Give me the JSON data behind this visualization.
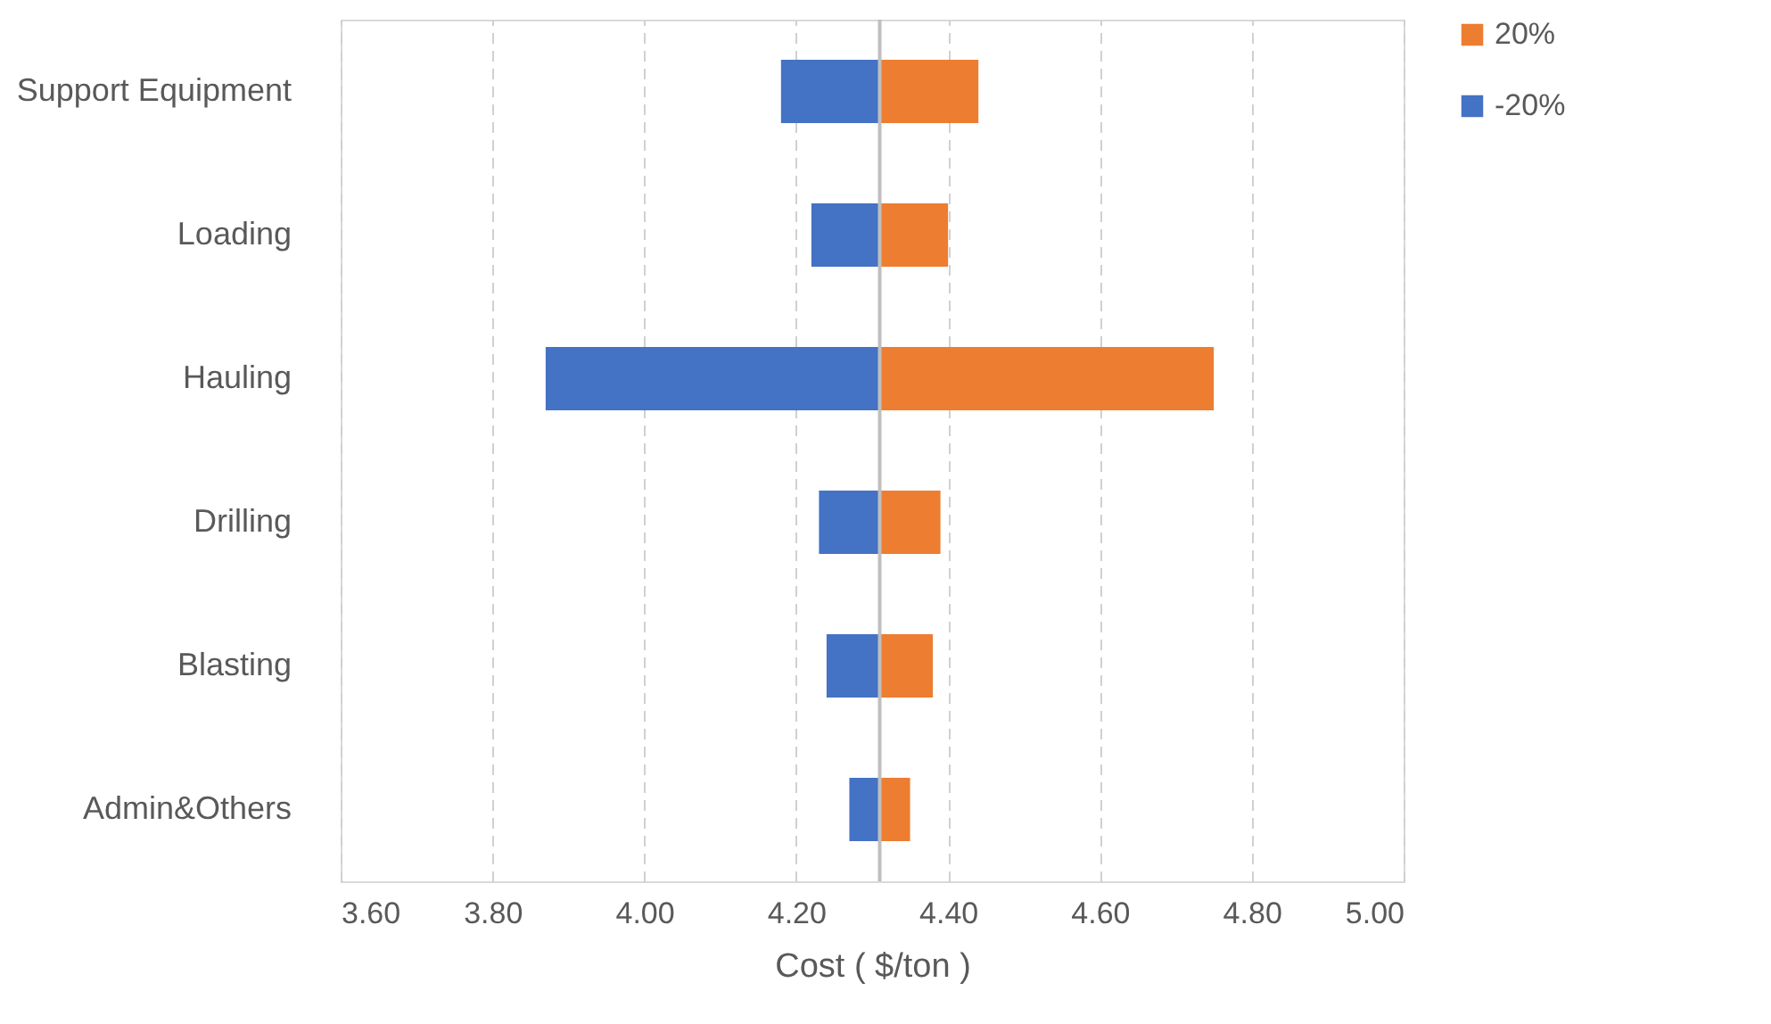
{
  "chart_data": {
    "type": "bar",
    "orientation": "horizontal",
    "xlabel": "Cost ( $/ton )",
    "categories": [
      "Support Equipment",
      "Loading",
      "Hauling",
      "Drilling",
      "Blasting",
      "Admin&Others"
    ],
    "series": [
      {
        "name": "20%",
        "color": "#ed7d31",
        "base": [
          4.31,
          4.31,
          4.31,
          4.31,
          4.31,
          4.31
        ],
        "values": [
          0.13,
          0.09,
          0.44,
          0.08,
          0.07,
          0.04
        ]
      },
      {
        "name": "-20%",
        "color": "#4472c4",
        "base": [
          4.31,
          4.31,
          4.31,
          4.31,
          4.31,
          4.31
        ],
        "values": [
          -0.13,
          -0.09,
          -0.44,
          -0.08,
          -0.07,
          -0.04
        ]
      }
    ],
    "xlim": [
      3.6,
      5.0
    ],
    "xticks": [
      {
        "value": 3.6,
        "label": "3.60"
      },
      {
        "value": 3.8,
        "label": "3.80"
      },
      {
        "value": 4.0,
        "label": "4.00"
      },
      {
        "value": 4.2,
        "label": "4.20"
      },
      {
        "value": 4.4,
        "label": "4.40"
      },
      {
        "value": 4.6,
        "label": "4.60"
      },
      {
        "value": 4.8,
        "label": "4.80"
      },
      {
        "value": 5.0,
        "label": "5.00"
      }
    ],
    "ref_lines": [
      {
        "axis": "x",
        "value": 4.31,
        "color": "#bfbfbf"
      }
    ],
    "grid": "x",
    "legend": "right"
  }
}
